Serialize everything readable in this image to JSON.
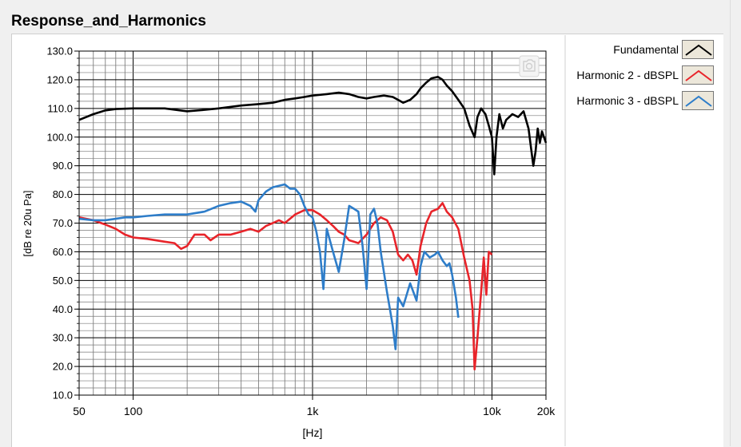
{
  "window": {
    "title": "Response_and_Harmonics"
  },
  "chart_data": {
    "type": "line",
    "title": "Response_and_Harmonics",
    "xlabel": "[Hz]",
    "ylabel": "[dB re 20u Pa]",
    "xscale": "log",
    "xlim": [
      50,
      20000
    ],
    "ylim": [
      10,
      130
    ],
    "x_ticks": [
      {
        "value": 50,
        "label": "50"
      },
      {
        "value": 100,
        "label": "100"
      },
      {
        "value": 1000,
        "label": "1k"
      },
      {
        "value": 10000,
        "label": "10k"
      },
      {
        "value": 20000,
        "label": "20k"
      }
    ],
    "y_ticks": [
      {
        "value": 10,
        "label": "10.0"
      },
      {
        "value": 20,
        "label": "20.0"
      },
      {
        "value": 30,
        "label": "30.0"
      },
      {
        "value": 40,
        "label": "40.0"
      },
      {
        "value": 50,
        "label": "50.0"
      },
      {
        "value": 60,
        "label": "60.0"
      },
      {
        "value": 70,
        "label": "70.0"
      },
      {
        "value": 80,
        "label": "80.0"
      },
      {
        "value": 90,
        "label": "90.0"
      },
      {
        "value": 100,
        "label": "100.0"
      },
      {
        "value": 110,
        "label": "110.0"
      },
      {
        "value": 120,
        "label": "120.0"
      },
      {
        "value": 130,
        "label": "130.0"
      }
    ],
    "grid": true,
    "legend_position": "right",
    "series": [
      {
        "name": "Fundamental",
        "color": "#000000",
        "points": [
          [
            50,
            106
          ],
          [
            60,
            108
          ],
          [
            70,
            109.3
          ],
          [
            80,
            109.8
          ],
          [
            100,
            110
          ],
          [
            150,
            110
          ],
          [
            200,
            109
          ],
          [
            250,
            109.5
          ],
          [
            300,
            110
          ],
          [
            400,
            111
          ],
          [
            500,
            111.5
          ],
          [
            600,
            112
          ],
          [
            700,
            113
          ],
          [
            800,
            113.5
          ],
          [
            900,
            114
          ],
          [
            1000,
            114.5
          ],
          [
            1200,
            115
          ],
          [
            1400,
            115.5
          ],
          [
            1600,
            115
          ],
          [
            1800,
            114
          ],
          [
            2000,
            113.5
          ],
          [
            2200,
            114
          ],
          [
            2500,
            114.5
          ],
          [
            2800,
            114
          ],
          [
            3000,
            113
          ],
          [
            3200,
            112
          ],
          [
            3500,
            113
          ],
          [
            3800,
            115
          ],
          [
            4000,
            117
          ],
          [
            4300,
            119
          ],
          [
            4600,
            120.5
          ],
          [
            5000,
            121
          ],
          [
            5300,
            120
          ],
          [
            5600,
            118
          ],
          [
            6000,
            116
          ],
          [
            6500,
            113
          ],
          [
            7000,
            110
          ],
          [
            7500,
            104
          ],
          [
            8000,
            100
          ],
          [
            8300,
            107
          ],
          [
            8700,
            110
          ],
          [
            9200,
            108
          ],
          [
            9600,
            104
          ],
          [
            10000,
            100
          ],
          [
            10300,
            87
          ],
          [
            10600,
            100
          ],
          [
            11000,
            108
          ],
          [
            11500,
            103
          ],
          [
            12000,
            106
          ],
          [
            13000,
            108
          ],
          [
            14000,
            107
          ],
          [
            15000,
            109
          ],
          [
            16000,
            103
          ],
          [
            17000,
            90
          ],
          [
            17500,
            95
          ],
          [
            18000,
            103
          ],
          [
            18500,
            98
          ],
          [
            19000,
            102
          ],
          [
            19500,
            100
          ],
          [
            20000,
            98
          ]
        ]
      },
      {
        "name": "Harmonic 2 - dBSPL",
        "color": "#e8242a",
        "points": [
          [
            50,
            72
          ],
          [
            60,
            71
          ],
          [
            70,
            69.5
          ],
          [
            80,
            68
          ],
          [
            90,
            66
          ],
          [
            100,
            65
          ],
          [
            120,
            64.5
          ],
          [
            150,
            63.5
          ],
          [
            170,
            63
          ],
          [
            185,
            61
          ],
          [
            200,
            62
          ],
          [
            220,
            66
          ],
          [
            250,
            66
          ],
          [
            270,
            64
          ],
          [
            300,
            66
          ],
          [
            350,
            66
          ],
          [
            400,
            67
          ],
          [
            450,
            68
          ],
          [
            500,
            67
          ],
          [
            550,
            69
          ],
          [
            600,
            70
          ],
          [
            650,
            71
          ],
          [
            700,
            70
          ],
          [
            800,
            73
          ],
          [
            900,
            74.5
          ],
          [
            1000,
            74.5
          ],
          [
            1100,
            73
          ],
          [
            1200,
            71
          ],
          [
            1300,
            69
          ],
          [
            1400,
            67
          ],
          [
            1500,
            66
          ],
          [
            1600,
            64
          ],
          [
            1700,
            63.5
          ],
          [
            1800,
            63
          ],
          [
            2000,
            66
          ],
          [
            2200,
            70
          ],
          [
            2400,
            72
          ],
          [
            2600,
            71
          ],
          [
            2800,
            67
          ],
          [
            3000,
            59
          ],
          [
            3200,
            57
          ],
          [
            3400,
            59
          ],
          [
            3600,
            57
          ],
          [
            3800,
            52
          ],
          [
            4000,
            62
          ],
          [
            4300,
            70
          ],
          [
            4600,
            74
          ],
          [
            5000,
            75
          ],
          [
            5300,
            77
          ],
          [
            5600,
            74
          ],
          [
            6000,
            72
          ],
          [
            6500,
            68
          ],
          [
            7000,
            58
          ],
          [
            7500,
            50
          ],
          [
            7800,
            40
          ],
          [
            8000,
            19
          ],
          [
            8300,
            30
          ],
          [
            8700,
            46
          ],
          [
            9000,
            58
          ],
          [
            9300,
            45
          ],
          [
            9600,
            60
          ],
          [
            10000,
            59
          ]
        ]
      },
      {
        "name": "Harmonic 3 - dBSPL",
        "color": "#2e7dc9",
        "points": [
          [
            50,
            71.5
          ],
          [
            60,
            71
          ],
          [
            70,
            71
          ],
          [
            80,
            71.5
          ],
          [
            90,
            72
          ],
          [
            100,
            72
          ],
          [
            120,
            72.5
          ],
          [
            150,
            73
          ],
          [
            200,
            73
          ],
          [
            250,
            74
          ],
          [
            300,
            76
          ],
          [
            350,
            77
          ],
          [
            400,
            77.5
          ],
          [
            450,
            76
          ],
          [
            480,
            74
          ],
          [
            500,
            78
          ],
          [
            550,
            81
          ],
          [
            600,
            82.5
          ],
          [
            700,
            83.5
          ],
          [
            750,
            82
          ],
          [
            800,
            82
          ],
          [
            850,
            80
          ],
          [
            900,
            76
          ],
          [
            950,
            73
          ],
          [
            1000,
            72
          ],
          [
            1050,
            67
          ],
          [
            1100,
            60
          ],
          [
            1150,
            47
          ],
          [
            1200,
            68
          ],
          [
            1300,
            60
          ],
          [
            1400,
            53
          ],
          [
            1500,
            64
          ],
          [
            1600,
            76
          ],
          [
            1700,
            75
          ],
          [
            1800,
            74
          ],
          [
            1900,
            62
          ],
          [
            2000,
            47
          ],
          [
            2100,
            73
          ],
          [
            2200,
            75
          ],
          [
            2300,
            70
          ],
          [
            2400,
            60
          ],
          [
            2600,
            46
          ],
          [
            2700,
            40
          ],
          [
            2800,
            34
          ],
          [
            2900,
            26
          ],
          [
            3000,
            44
          ],
          [
            3200,
            41
          ],
          [
            3500,
            49
          ],
          [
            3800,
            43
          ],
          [
            4000,
            55
          ],
          [
            4200,
            60
          ],
          [
            4500,
            58
          ],
          [
            4800,
            59
          ],
          [
            5000,
            60
          ],
          [
            5300,
            57
          ],
          [
            5600,
            55
          ],
          [
            5800,
            56
          ],
          [
            6000,
            52
          ],
          [
            6300,
            44
          ],
          [
            6500,
            37
          ]
        ]
      }
    ]
  },
  "legend": {
    "items": [
      {
        "label": "Fundamental",
        "color": "#000000"
      },
      {
        "label": "Harmonic 2 - dBSPL",
        "color": "#e8242a"
      },
      {
        "label": "Harmonic 3 - dBSPL",
        "color": "#2e7dc9"
      }
    ]
  },
  "icons": {
    "camera": "camera-icon"
  }
}
